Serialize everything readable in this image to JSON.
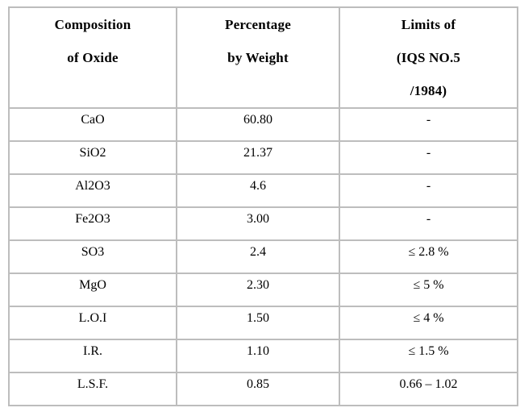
{
  "table": {
    "headers": [
      {
        "lines": [
          "Composition",
          "of Oxide",
          ""
        ]
      },
      {
        "lines": [
          "Percentage",
          "by Weight",
          ""
        ]
      },
      {
        "lines": [
          "Limits of",
          "(IQS NO.5",
          "/1984)"
        ]
      }
    ],
    "rows": [
      {
        "oxide": "CaO",
        "percentage": "60.80",
        "limit": "-"
      },
      {
        "oxide": "SiO2",
        "percentage": "21.37",
        "limit": "-"
      },
      {
        "oxide": "Al2O3",
        "percentage": "4.6",
        "limit": "-"
      },
      {
        "oxide": "Fe2O3",
        "percentage": "3.00",
        "limit": "-"
      },
      {
        "oxide": "SO3",
        "percentage": "2.4",
        "limit": "≤ 2.8 %"
      },
      {
        "oxide": "MgO",
        "percentage": "2.30",
        "limit": "≤ 5 %"
      },
      {
        "oxide": "L.O.I",
        "percentage": "1.50",
        "limit": "≤ 4 %"
      },
      {
        "oxide": "I.R.",
        "percentage": "1.10",
        "limit": "≤ 1.5 %"
      },
      {
        "oxide": "L.S.F.",
        "percentage": "0.85",
        "limit": "0.66 – 1.02"
      }
    ],
    "colors": {
      "border": "#bdbdbd",
      "text": "#000000",
      "background": "#ffffff"
    }
  }
}
